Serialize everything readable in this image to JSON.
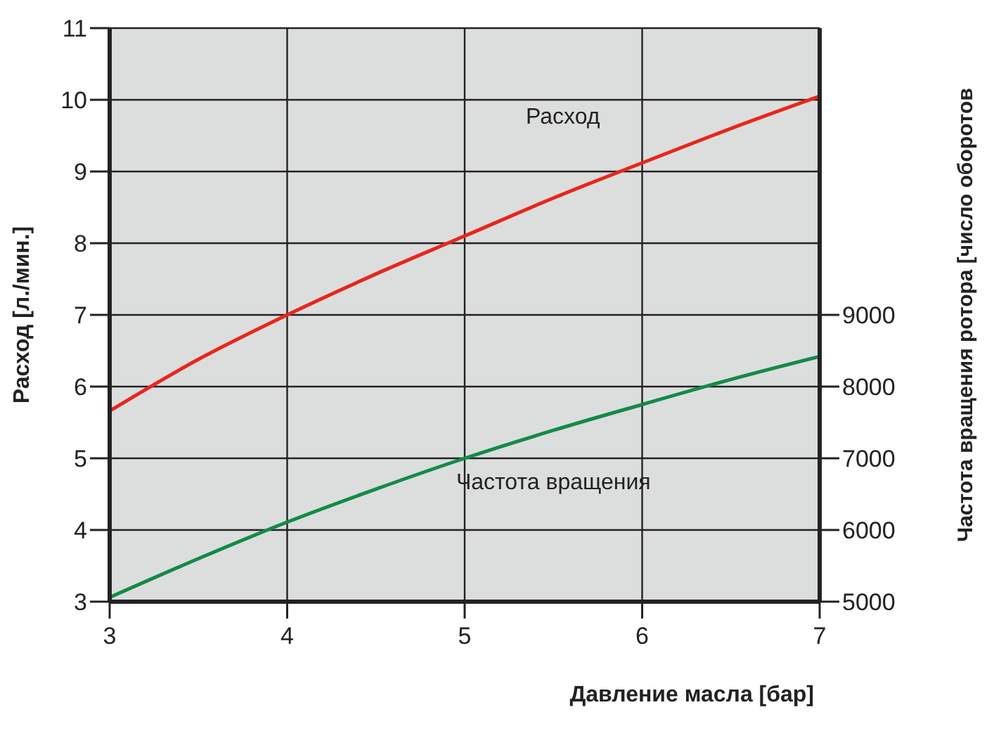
{
  "chart_data": {
    "type": "line",
    "xlabel": "Давление масла [бар]",
    "ylabel": "Расход [л./мин.]",
    "y2label": "Частота вращения ротора [число оборотов",
    "x": [
      3,
      3.5,
      4,
      4.5,
      5,
      5.5,
      6,
      6.5,
      7
    ],
    "series": [
      {
        "name": "Расход",
        "color": "#e8261c",
        "values": [
          5.66,
          6.38,
          7.0,
          7.57,
          8.1,
          8.63,
          9.12,
          9.6,
          10.05
        ]
      },
      {
        "name": "Частота вращения",
        "color": "#138a4a",
        "axis": "y2",
        "values": [
          5060,
          5600,
          6110,
          6570,
          7000,
          7390,
          7750,
          8100,
          8420
        ]
      }
    ],
    "xlim": [
      3,
      7
    ],
    "xticks": [
      3,
      4,
      5,
      6,
      7
    ],
    "ylim": [
      3,
      11
    ],
    "yticks": [
      3,
      4,
      5,
      6,
      7,
      8,
      9,
      10,
      11
    ],
    "y2lim": [
      5000,
      13000
    ],
    "y2ticks": [
      5000,
      6000,
      7000,
      8000,
      9000
    ],
    "grid": true,
    "legend": false,
    "marker": "none",
    "line_style": "solid"
  }
}
